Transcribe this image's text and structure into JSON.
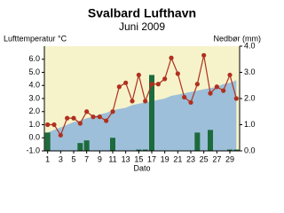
{
  "chart_data": {
    "type": "combo",
    "title": "Svalbard Lufthavn",
    "subtitle": "Juni 2009",
    "y_label": "Lufttemperatur °C",
    "y2_label": "Nedbør (mm)",
    "x_label": "Dato",
    "x": [
      1,
      2,
      3,
      4,
      5,
      6,
      7,
      8,
      9,
      10,
      11,
      12,
      13,
      14,
      15,
      16,
      17,
      18,
      19,
      20,
      21,
      22,
      23,
      24,
      25,
      26,
      27,
      28,
      29,
      30
    ],
    "xlim": [
      0.5,
      30.5
    ],
    "xticks": [
      1,
      3,
      5,
      7,
      9,
      11,
      13,
      15,
      17,
      19,
      21,
      23,
      25,
      27,
      29
    ],
    "ylim": [
      -1,
      7
    ],
    "yticks": [
      {
        "value": -1,
        "label": "-1.0"
      },
      {
        "value": 0,
        "label": "0.0"
      },
      {
        "value": 1,
        "label": "1.0"
      },
      {
        "value": 2,
        "label": "2.0"
      },
      {
        "value": 3,
        "label": "3.0"
      },
      {
        "value": 4,
        "label": "4.0"
      },
      {
        "value": 5,
        "label": "5.0"
      },
      {
        "value": 6,
        "label": "6.0"
      }
    ],
    "y2lim": [
      0,
      4
    ],
    "y2ticks": [
      {
        "value": 0,
        "label": "0.0"
      },
      {
        "value": 1,
        "label": "1.0"
      },
      {
        "value": 2,
        "label": "2.0"
      },
      {
        "value": 3,
        "label": "3.0"
      },
      {
        "value": 4,
        "label": "4.0"
      }
    ],
    "background": "#f6f3cb",
    "series": [
      {
        "kind": "area",
        "color": "#9dbfd9",
        "values": [
          0.4,
          0.6,
          0.8,
          1.0,
          1.2,
          1.3,
          1.5,
          1.6,
          1.8,
          1.9,
          2.1,
          2.2,
          2.3,
          2.5,
          2.6,
          2.7,
          2.8,
          2.9,
          3.0,
          3.2,
          3.3,
          3.4,
          3.5,
          3.6,
          3.7,
          3.8,
          3.9,
          4.1,
          4.2,
          4.4
        ]
      },
      {
        "kind": "bar",
        "axis": "y2",
        "color": "#1d6b3c",
        "values": [
          0.7,
          0,
          0,
          0,
          0,
          0.3,
          0.4,
          0,
          0,
          0,
          0.5,
          0,
          0,
          0,
          0.05,
          0.05,
          2.9,
          0,
          0,
          0,
          0,
          0,
          0,
          0.7,
          0,
          0.8,
          0,
          0,
          0.05,
          0.05
        ]
      },
      {
        "kind": "line",
        "color": "#b0301e",
        "values": [
          1.0,
          1.0,
          0.2,
          1.5,
          1.5,
          1.1,
          2.0,
          1.6,
          1.6,
          1.3,
          2.0,
          3.9,
          4.2,
          2.8,
          4.8,
          2.8,
          4.1,
          4.1,
          4.5,
          6.1,
          4.9,
          3.1,
          2.7,
          4.1,
          6.3,
          3.4,
          3.9,
          3.6,
          4.8,
          3.0
        ]
      }
    ]
  }
}
